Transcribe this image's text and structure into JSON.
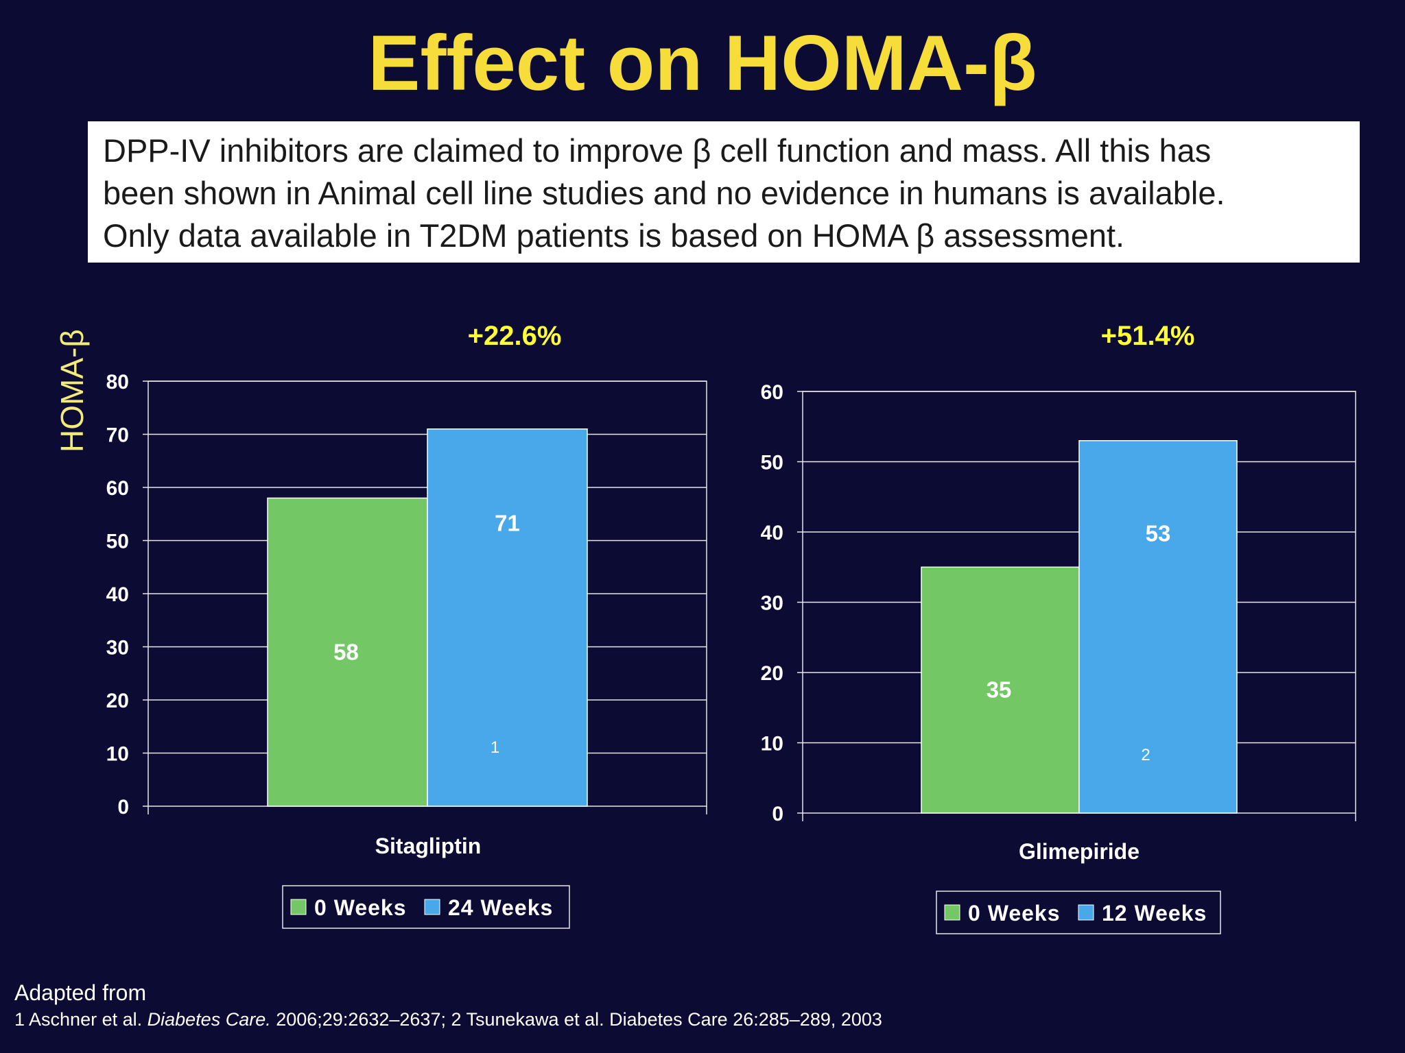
{
  "slide": {
    "title": "Effect on HOMA-β",
    "intro_lines": [
      "DPP-IV inhibitors are claimed to improve β cell function and mass. All this has",
      "been shown in Animal cell line studies and no evidence in humans is available.",
      "Only data available in T2DM patients is based on HOMA β assessment."
    ],
    "ylabel": "HOMA-β",
    "footer": {
      "adapted": "Adapted from",
      "ref_1_prefix": "1 Aschner et al. ",
      "ref_1_journal": "Diabetes Care.",
      "ref_1_rest": " 2006;29:2632–2637; 2 Tsunekawa et al. Diabetes Care 26:285–289, 2003"
    }
  },
  "colors": {
    "background": "#0b0b33",
    "title": "#f7dd3a",
    "annotation": "#ffff33",
    "ylabel": "#f2ea7a",
    "series_0_weeks": "#74c765",
    "series_followup": "#48a8ea"
  },
  "chart_data": [
    {
      "type": "bar",
      "categories": [
        "Sitagliptin"
      ],
      "series": [
        {
          "name": "0 Weeks",
          "values": [
            58
          ],
          "color": "#74c765"
        },
        {
          "name": "24 Weeks",
          "values": [
            71
          ],
          "color": "#48a8ea"
        }
      ],
      "data_labels": [
        "58",
        "71"
      ],
      "ref_marker": "1",
      "annotation": "+22.6%",
      "ylabel": "HOMA-β",
      "ylim": [
        0,
        80
      ],
      "yticks": [
        0,
        10,
        20,
        30,
        40,
        50,
        60,
        70,
        80
      ],
      "grid": true,
      "legend": "bottom"
    },
    {
      "type": "bar",
      "categories": [
        "Glimepiride"
      ],
      "series": [
        {
          "name": "0 Weeks",
          "values": [
            35
          ],
          "color": "#74c765"
        },
        {
          "name": "12 Weeks",
          "values": [
            53
          ],
          "color": "#48a8ea"
        }
      ],
      "data_labels": [
        "35",
        "53"
      ],
      "ref_marker": "2",
      "annotation": "+51.4%",
      "ylim": [
        0,
        60
      ],
      "yticks": [
        0,
        10,
        20,
        30,
        40,
        50,
        60
      ],
      "grid": true,
      "legend": "bottom"
    }
  ]
}
